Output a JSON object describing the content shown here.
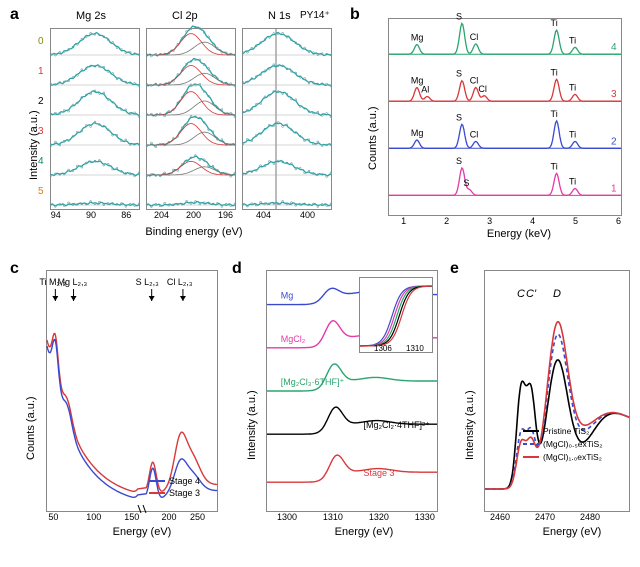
{
  "panel_labels": {
    "a": "a",
    "b": "b",
    "c": "c",
    "d": "d",
    "e": "e"
  },
  "colors": {
    "bg": "#ffffff",
    "border": "#888888",
    "black": "#000000",
    "red": "#d8383a",
    "blue": "#3a4ad0",
    "pink": "#e23aa7",
    "green": "#2aa56f",
    "dark_green": "#0e8c60",
    "teal": "#2aa3a3",
    "orange": "#d67a1c",
    "olive": "#8a8a00",
    "gray": "#777777",
    "grid": "#cccccc"
  },
  "panel_a": {
    "subplots": [
      {
        "title": "Mg 2s",
        "title_style": "italic-last-letter",
        "xticks": [
          94,
          90,
          86
        ],
        "xlim": [
          95,
          85
        ],
        "width": 88,
        "annot": [
          "5",
          "4",
          "3",
          "2",
          "1",
          "0"
        ],
        "annot_colors": [
          "#d67a1c",
          "#0e8c60",
          "#d8383a",
          "#000000",
          "#d8383a",
          "#8a8a00"
        ]
      },
      {
        "title": "Cl 2p",
        "title_style": "italic-last-letter",
        "xticks": [
          204,
          200,
          196
        ],
        "xlim": [
          206,
          195
        ],
        "width": 88
      },
      {
        "title": "N 1s",
        "extra_title": "PY14⁺",
        "xticks": [
          404,
          400
        ],
        "xlim": [
          406,
          398
        ],
        "width": 88,
        "vline": 403
      }
    ],
    "n_rows": 6,
    "xlabel": "Binding energy (eV)",
    "ylabel": "Intensity (a.u.)",
    "curve_color": "#2aa3a3",
    "fit_colors": [
      "#777777",
      "#d8383a",
      "#2aa56f"
    ],
    "marker_color": "#5a9fa8",
    "peak_heights": [
      0.05,
      0.35,
      0.55,
      0.6,
      0.5,
      0.55
    ],
    "cl_doublet_shift": 2.0
  },
  "panel_b": {
    "xlabel": "Energy (keV)",
    "ylabel": "Counts (a.u.)",
    "xticks": [
      1,
      2,
      3,
      4,
      5,
      6
    ],
    "xlim": [
      0.6,
      6.0
    ],
    "traces": [
      {
        "label": "4",
        "color": "#2aa56f",
        "y": 0.8,
        "peaks": [
          {
            "e": 1.25,
            "h": 0.14,
            "lab": "Mg"
          },
          {
            "e": 2.3,
            "h": 0.45,
            "lab": "S"
          },
          {
            "e": 2.62,
            "h": 0.15,
            "lab": "Cl"
          },
          {
            "e": 4.5,
            "h": 0.35,
            "lab": "Ti"
          },
          {
            "e": 4.93,
            "h": 0.1,
            "lab": "Ti"
          }
        ]
      },
      {
        "label": "3",
        "color": "#d8383a",
        "y": 0.56,
        "peaks": [
          {
            "e": 1.25,
            "h": 0.2,
            "lab": "Mg"
          },
          {
            "e": 1.49,
            "h": 0.07,
            "lab": "Al"
          },
          {
            "e": 2.3,
            "h": 0.3,
            "lab": "S"
          },
          {
            "e": 2.62,
            "h": 0.2,
            "lab": "Cl"
          },
          {
            "e": 2.82,
            "h": 0.08,
            "lab": "Cl"
          },
          {
            "e": 4.5,
            "h": 0.32,
            "lab": "Ti"
          },
          {
            "e": 4.93,
            "h": 0.1,
            "lab": "Ti"
          }
        ]
      },
      {
        "label": "2",
        "color": "#3a4ad0",
        "y": 0.32,
        "peaks": [
          {
            "e": 1.25,
            "h": 0.12,
            "lab": "Mg"
          },
          {
            "e": 2.3,
            "h": 0.35,
            "lab": "S"
          },
          {
            "e": 2.62,
            "h": 0.1,
            "lab": "Cl"
          },
          {
            "e": 4.5,
            "h": 0.4,
            "lab": "Ti"
          },
          {
            "e": 4.93,
            "h": 0.1,
            "lab": "Ti"
          }
        ]
      },
      {
        "label": "1",
        "color": "#e23aa7",
        "y": 0.08,
        "peaks": [
          {
            "e": 2.3,
            "h": 0.4,
            "lab": "S"
          },
          {
            "e": 2.47,
            "h": 0.08,
            "lab": "S"
          },
          {
            "e": 4.5,
            "h": 0.32,
            "lab": "Ti"
          },
          {
            "e": 4.93,
            "h": 0.1,
            "lab": "Ti"
          }
        ]
      }
    ]
  },
  "panel_c": {
    "xlabel": "Energy (eV)",
    "ylabel": "Counts (a.u.)",
    "xticks_left": [
      50,
      100,
      150
    ],
    "xticks_right": [
      200,
      250
    ],
    "xlim_left": [
      35,
      155
    ],
    "xlim_right": [
      155,
      280
    ],
    "edge_labels": [
      {
        "txt": "Ti M₂,₃",
        "x": 46,
        "seg": "L"
      },
      {
        "txt": "Mg L₂,₃",
        "x": 70,
        "seg": "L"
      },
      {
        "txt": "S L₂,₃",
        "x": 165,
        "seg": "R"
      },
      {
        "txt": "Cl L₂,₃",
        "x": 220,
        "seg": "R"
      }
    ],
    "traces": [
      {
        "label": "Stage 4",
        "color": "#3a4ad0"
      },
      {
        "label": "Stage 3",
        "color": "#d8383a"
      }
    ]
  },
  "panel_d": {
    "xlabel": "Energy (eV)",
    "ylabel": "Intensity (a.u.)",
    "xticks": [
      1300,
      1310,
      1320,
      1330
    ],
    "xlim": [
      1295,
      1332
    ],
    "inset": {
      "xticks": [
        1306,
        1310
      ],
      "xlim": [
        1303,
        1312
      ]
    },
    "traces": [
      {
        "label": "Mg",
        "color": "#3a4ad0",
        "y": 0.86
      },
      {
        "label": "MgCl₂",
        "color": "#e23aa7",
        "y": 0.68
      },
      {
        "label": "[Mg₂Cl₃·6THF]⁺",
        "color": "#2aa56f",
        "y": 0.5
      },
      {
        "label": "[Mg₂Cl₂·4THF]²⁺",
        "color": "#000000",
        "y": 0.32
      },
      {
        "label": "Stage 3",
        "color": "#d8383a",
        "y": 0.12
      }
    ]
  },
  "panel_e": {
    "xlabel": "Energy (eV)",
    "ylabel": "Intensity (a.u.)",
    "xticks": [
      2460,
      2470,
      2480
    ],
    "xlim": [
      2456,
      2488
    ],
    "peak_labels": [
      {
        "txt": "C",
        "x": 2464
      },
      {
        "txt": "C'",
        "x": 2466
      },
      {
        "txt": "D",
        "x": 2472
      }
    ],
    "legend": [
      {
        "label": "Pristine TiS₂",
        "color": "#000000",
        "dash": "0"
      },
      {
        "label": "(MgCl)₀.₅exTiS₂",
        "color": "#3a4ad0",
        "dash": "4 3"
      },
      {
        "label": "(MgCl)₁.₀exTiS₂",
        "color": "#d8383a",
        "dash": "0"
      }
    ]
  }
}
